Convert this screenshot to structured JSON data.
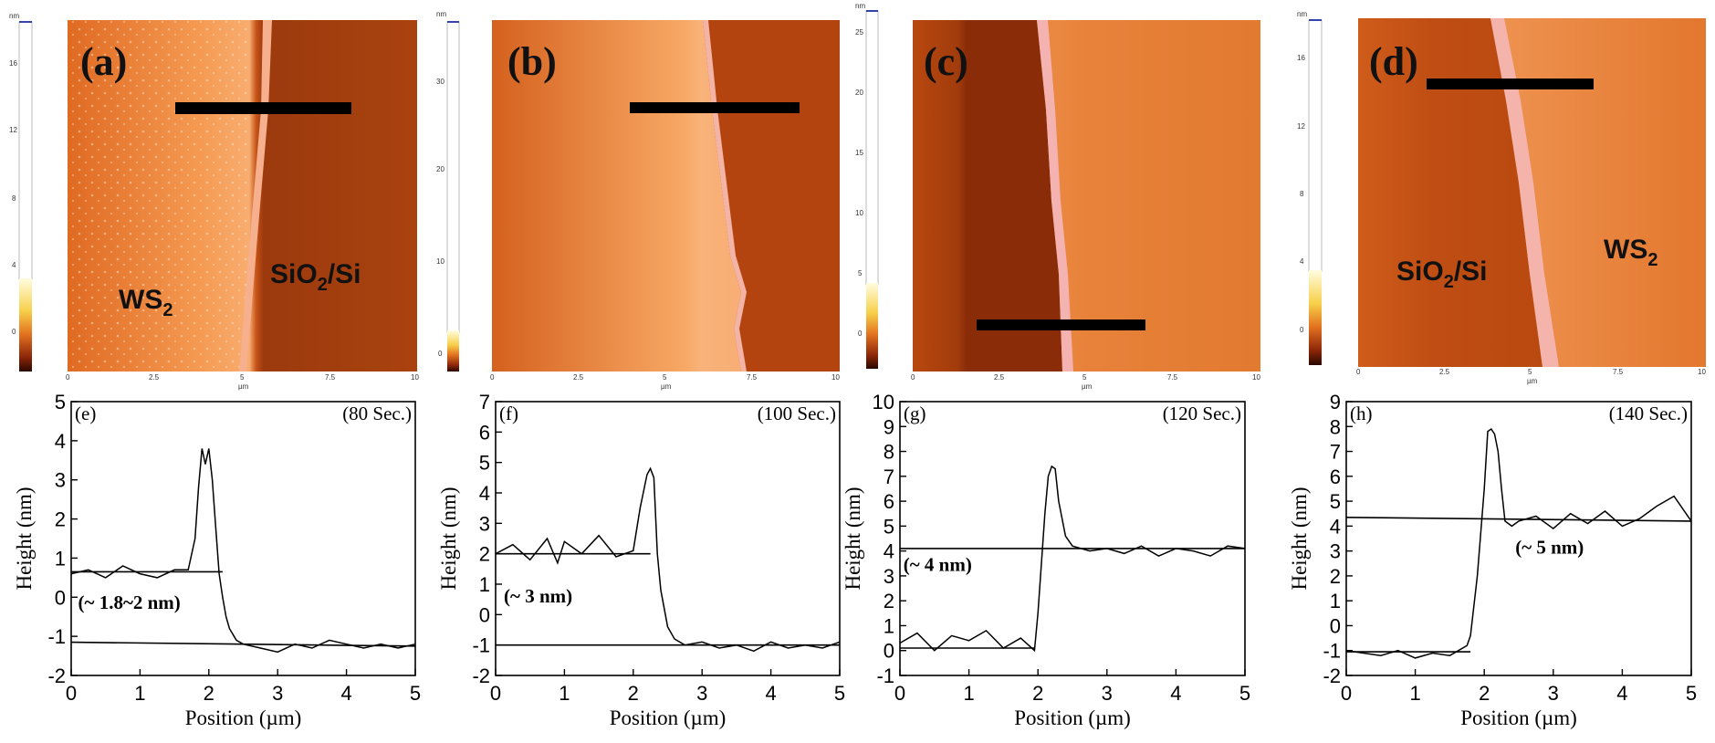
{
  "afm_panels": [
    {
      "letter": "(a)",
      "labels": [
        "WS2",
        "SiO2/Si"
      ],
      "colorbar_unit": "nm",
      "colorbar_ticks": [
        "16",
        "12",
        "8",
        "4",
        "0"
      ],
      "axis_ticks": [
        "0",
        "2.5",
        "5",
        "7.5",
        "10"
      ],
      "axis_unit": "µm"
    },
    {
      "letter": "(b)",
      "labels": [],
      "colorbar_unit": "nm",
      "colorbar_ticks": [
        "30",
        "20",
        "10",
        "0"
      ],
      "axis_ticks": [
        "0",
        "2.5",
        "5",
        "7.5",
        "10"
      ],
      "axis_unit": "µm"
    },
    {
      "letter": "(c)",
      "labels": [],
      "colorbar_unit": "nm",
      "colorbar_ticks": [
        "25",
        "20",
        "15",
        "10",
        "5",
        "0"
      ],
      "axis_ticks": [
        "0",
        "2.5",
        "5",
        "7.5",
        "10"
      ],
      "axis_unit": "µm"
    },
    {
      "letter": "(d)",
      "labels": [
        "SiO2/Si",
        "WS2"
      ],
      "colorbar_unit": "nm",
      "colorbar_ticks": [
        "16",
        "12",
        "8",
        "4",
        "0"
      ],
      "axis_ticks": [
        "0",
        "2.5",
        "5",
        "7.5",
        "10"
      ],
      "axis_unit": "µm"
    }
  ],
  "colors": {
    "afm_dark": "#8a2d0c",
    "afm_mid": "#d8621c",
    "afm_light": "#f6a05a",
    "afm_edge": "#f3b3a6",
    "line": "#000000"
  },
  "chart_data": [
    {
      "type": "line",
      "panel": "(e)",
      "time_label": "(80 Sec.)",
      "annotation": "(~ 1.8~2 nm)",
      "xlabel": "Position (µm)",
      "ylabel": "Height (nm)",
      "xlim": [
        0,
        5
      ],
      "ylim": [
        -2,
        5
      ],
      "xticks": [
        0,
        1,
        2,
        3,
        4,
        5
      ],
      "yticks": [
        -2,
        -1,
        0,
        1,
        2,
        3,
        4,
        5
      ],
      "x": [
        0,
        0.25,
        0.5,
        0.75,
        1.0,
        1.25,
        1.5,
        1.7,
        1.8,
        1.85,
        1.9,
        1.95,
        2.0,
        2.05,
        2.1,
        2.15,
        2.2,
        2.25,
        2.3,
        2.4,
        2.5,
        2.75,
        3.0,
        3.25,
        3.5,
        3.75,
        4.0,
        4.25,
        4.5,
        4.75,
        5.0
      ],
      "y": [
        0.6,
        0.7,
        0.5,
        0.8,
        0.6,
        0.5,
        0.7,
        0.7,
        1.5,
        2.8,
        3.8,
        3.4,
        3.8,
        3.0,
        1.8,
        0.6,
        0.0,
        -0.5,
        -0.8,
        -1.1,
        -1.2,
        -1.3,
        -1.4,
        -1.2,
        -1.3,
        -1.1,
        -1.2,
        -1.3,
        -1.2,
        -1.3,
        -1.2
      ],
      "baselines": [
        {
          "x": [
            0,
            2.2
          ],
          "y": [
            0.65,
            0.65
          ]
        },
        {
          "x": [
            0,
            5
          ],
          "y": [
            -1.15,
            -1.25
          ]
        }
      ]
    },
    {
      "type": "line",
      "panel": "(f)",
      "time_label": "(100 Sec.)",
      "annotation": "(~ 3 nm)",
      "xlabel": "Position (µm)",
      "ylabel": "Height (nm)",
      "xlim": [
        0,
        5
      ],
      "ylim": [
        -2,
        7
      ],
      "xticks": [
        0,
        1,
        2,
        3,
        4,
        5
      ],
      "yticks": [
        -2,
        -1,
        0,
        1,
        2,
        3,
        4,
        5,
        6,
        7
      ],
      "x": [
        0,
        0.25,
        0.5,
        0.75,
        0.9,
        1.0,
        1.25,
        1.5,
        1.75,
        2.0,
        2.1,
        2.2,
        2.25,
        2.3,
        2.35,
        2.4,
        2.5,
        2.6,
        2.75,
        3.0,
        3.25,
        3.5,
        3.75,
        4.0,
        4.25,
        4.5,
        4.75,
        5.0
      ],
      "y": [
        2.0,
        2.3,
        1.8,
        2.5,
        1.7,
        2.4,
        2.0,
        2.6,
        1.9,
        2.1,
        3.5,
        4.6,
        4.8,
        4.5,
        2.0,
        0.8,
        -0.4,
        -0.8,
        -1.0,
        -0.9,
        -1.1,
        -1.0,
        -1.2,
        -0.9,
        -1.1,
        -1.0,
        -1.1,
        -0.9
      ],
      "baselines": [
        {
          "x": [
            0,
            2.25
          ],
          "y": [
            2.0,
            2.0
          ]
        },
        {
          "x": [
            0,
            5
          ],
          "y": [
            -1.0,
            -1.0
          ]
        }
      ]
    },
    {
      "type": "line",
      "panel": "(g)",
      "time_label": "(120 Sec.)",
      "annotation": "(~ 4  nm)",
      "xlabel": "Position (µm)",
      "ylabel": "Height (nm)",
      "xlim": [
        0,
        5
      ],
      "ylim": [
        -1,
        10
      ],
      "xticks": [
        0,
        1,
        2,
        3,
        4,
        5
      ],
      "yticks": [
        -1,
        0,
        1,
        2,
        3,
        4,
        5,
        6,
        7,
        8,
        9,
        10
      ],
      "x": [
        0,
        0.25,
        0.5,
        0.75,
        1.0,
        1.25,
        1.5,
        1.75,
        1.95,
        2.0,
        2.05,
        2.1,
        2.15,
        2.2,
        2.25,
        2.3,
        2.4,
        2.5,
        2.75,
        3.0,
        3.25,
        3.5,
        3.75,
        4.0,
        4.25,
        4.5,
        4.75,
        5.0
      ],
      "y": [
        0.3,
        0.7,
        0.0,
        0.6,
        0.4,
        0.8,
        0.1,
        0.5,
        0.0,
        1.5,
        3.5,
        5.5,
        7.0,
        7.4,
        7.3,
        6.0,
        4.6,
        4.2,
        4.0,
        4.1,
        3.9,
        4.2,
        3.8,
        4.1,
        4.0,
        3.8,
        4.2,
        4.1
      ],
      "baselines": [
        {
          "x": [
            0,
            1.95
          ],
          "y": [
            0.1,
            0.1
          ]
        },
        {
          "x": [
            0,
            5
          ],
          "y": [
            4.1,
            4.1
          ]
        }
      ]
    },
    {
      "type": "line",
      "panel": "(h)",
      "time_label": "(140 Sec.)",
      "annotation": "(~ 5 nm)",
      "xlabel": "Position (µm)",
      "ylabel": "Height (nm)",
      "xlim": [
        0,
        5
      ],
      "ylim": [
        -2,
        9
      ],
      "xticks": [
        0,
        1,
        2,
        3,
        4,
        5
      ],
      "yticks": [
        -2,
        -1,
        0,
        1,
        2,
        3,
        4,
        5,
        6,
        7,
        8,
        9
      ],
      "x": [
        0,
        0.25,
        0.5,
        0.75,
        1.0,
        1.25,
        1.5,
        1.75,
        1.8,
        1.9,
        2.0,
        2.05,
        2.1,
        2.15,
        2.2,
        2.25,
        2.3,
        2.4,
        2.5,
        2.75,
        3.0,
        3.25,
        3.5,
        3.75,
        4.0,
        4.25,
        4.5,
        4.75,
        5.0
      ],
      "y": [
        -1.0,
        -1.1,
        -1.2,
        -1.0,
        -1.3,
        -1.1,
        -1.2,
        -0.8,
        -0.4,
        2.0,
        5.5,
        7.8,
        7.9,
        7.7,
        7.0,
        5.5,
        4.2,
        4.0,
        4.2,
        4.4,
        3.9,
        4.5,
        4.1,
        4.6,
        4.0,
        4.3,
        4.8,
        5.2,
        4.2
      ],
      "baselines": [
        {
          "x": [
            0,
            1.8
          ],
          "y": [
            -1.05,
            -1.05
          ]
        },
        {
          "x": [
            0,
            5
          ],
          "y": [
            4.35,
            4.2
          ]
        }
      ]
    }
  ]
}
